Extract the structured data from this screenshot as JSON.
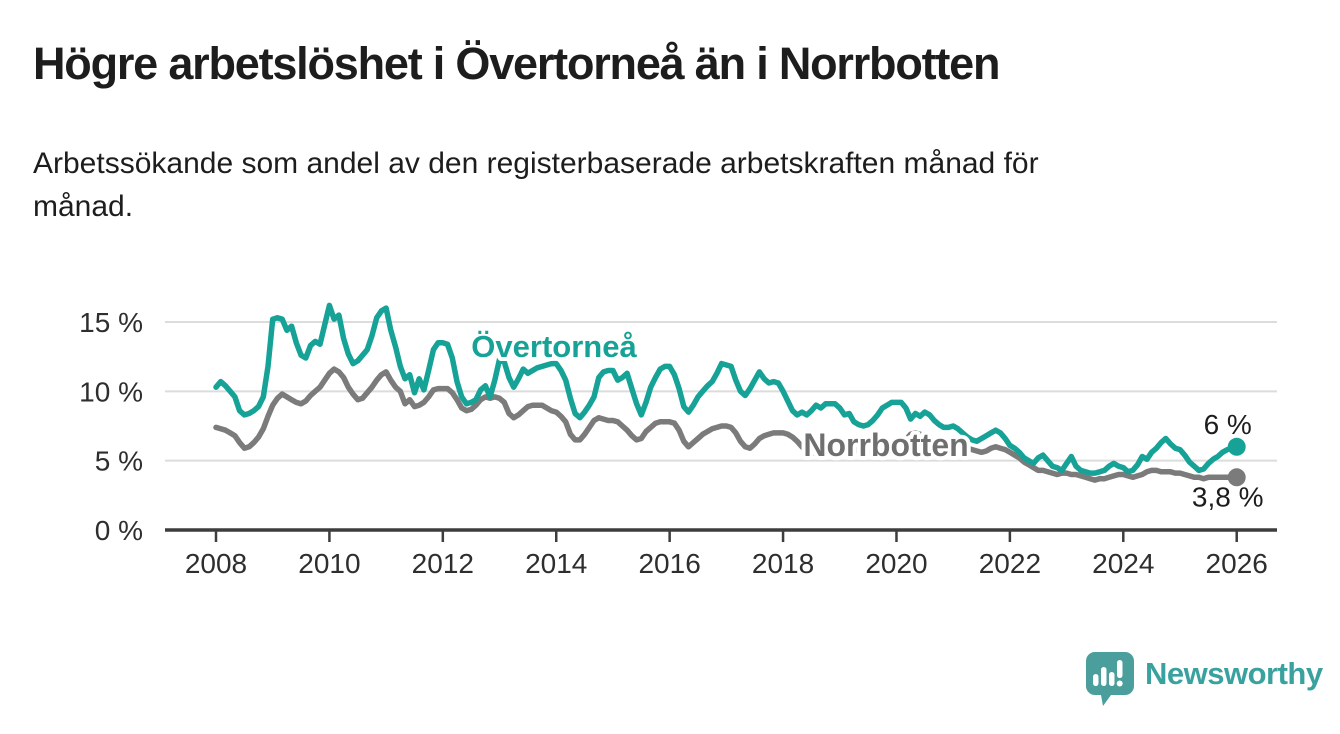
{
  "header": {
    "title": "Högre arbetslöshet i Övertorneå än i Norrbotten",
    "subtitle_line1": "Arbetssökande som andel av den registerbaserade arbetskraften månad för",
    "subtitle_line2": "månad."
  },
  "footer": {
    "brand": "Newsworthy",
    "logo_icon": "bar-chart-speech-bubble-icon"
  },
  "colors": {
    "overtornea": "#16a296",
    "norrbotten_line": "#7b7b7b",
    "norrbotten_label": "#6f6f6f",
    "grid": "#dcdcdc",
    "axis": "#3d3d3d",
    "text_dark": "#1d1d1d",
    "logo_teal": "#4a9e9b",
    "brand_text": "#3aa29e"
  },
  "chart_data": {
    "type": "line",
    "title": "Högre arbetslöshet i Övertorneå än i Norrbotten",
    "subtitle": "Arbetssökande som andel av den registerbaserade arbetskraften månad för månad.",
    "x_unit": "month",
    "x_start": "2008-01",
    "x_end": "2026-01",
    "x_tick_labels": [
      "2008",
      "2010",
      "2012",
      "2014",
      "2016",
      "2018",
      "2020",
      "2022",
      "2024",
      "2026"
    ],
    "y_ticks": [
      {
        "value": 0,
        "label": "0 %"
      },
      {
        "value": 5,
        "label": "5 %"
      },
      {
        "value": 10,
        "label": "10 %"
      },
      {
        "value": 15,
        "label": "15 %"
      }
    ],
    "ylim": [
      0,
      17
    ],
    "grid": "horizontal",
    "legend_position": "inline-labels",
    "series": [
      {
        "name": "Norrbotten",
        "color": "#7b7b7b",
        "end_label": "3,8 %",
        "end_value": 3.8,
        "values": [
          7.4,
          7.3,
          7.2,
          7.0,
          6.8,
          6.3,
          5.9,
          6.0,
          6.3,
          6.7,
          7.3,
          8.2,
          9.0,
          9.5,
          9.8,
          9.6,
          9.4,
          9.2,
          9.1,
          9.3,
          9.7,
          10.0,
          10.3,
          10.8,
          11.3,
          11.6,
          11.4,
          11.0,
          10.3,
          9.8,
          9.4,
          9.5,
          9.9,
          10.3,
          10.8,
          11.2,
          11.4,
          10.8,
          10.3,
          10.0,
          9.1,
          9.4,
          8.9,
          9.0,
          9.2,
          9.6,
          10.1,
          10.2,
          10.2,
          10.2,
          9.9,
          9.4,
          8.8,
          8.6,
          8.7,
          9.0,
          9.4,
          9.6,
          9.5,
          9.6,
          9.5,
          9.2,
          8.4,
          8.1,
          8.3,
          8.6,
          8.9,
          9.0,
          9.0,
          9.0,
          8.8,
          8.6,
          8.5,
          8.2,
          7.8,
          6.9,
          6.5,
          6.5,
          6.9,
          7.4,
          7.9,
          8.1,
          8.0,
          7.9,
          7.9,
          7.8,
          7.5,
          7.2,
          6.8,
          6.5,
          6.6,
          7.1,
          7.4,
          7.7,
          7.8,
          7.8,
          7.8,
          7.7,
          7.2,
          6.4,
          6.0,
          6.3,
          6.6,
          6.9,
          7.1,
          7.3,
          7.4,
          7.5,
          7.5,
          7.4,
          7.0,
          6.4,
          6.0,
          5.9,
          6.2,
          6.6,
          6.8,
          6.9,
          7.0,
          7.0,
          7.0,
          6.9,
          6.7,
          6.4,
          6.0,
          5.7,
          5.5,
          5.6,
          5.8,
          6.0,
          6.2,
          6.3,
          6.4,
          6.3,
          6.1,
          5.9,
          5.7,
          5.5,
          5.5,
          5.6,
          5.8,
          6.0,
          6.1,
          6.2,
          6.3,
          6.3,
          6.5,
          6.9,
          7.0,
          6.9,
          6.8,
          6.6,
          6.4,
          6.2,
          6.1,
          6.2,
          6.3,
          6.2,
          6.0,
          5.9,
          5.8,
          5.7,
          5.6,
          5.7,
          5.9,
          6.0,
          5.9,
          5.8,
          5.6,
          5.4,
          5.2,
          4.9,
          4.7,
          4.5,
          4.3,
          4.3,
          4.2,
          4.1,
          4.0,
          4.1,
          4.1,
          4.0,
          4.0,
          3.9,
          3.8,
          3.7,
          3.6,
          3.7,
          3.7,
          3.8,
          3.9,
          4.0,
          4.0,
          3.9,
          3.8,
          3.9,
          4.0,
          4.2,
          4.3,
          4.3,
          4.2,
          4.2,
          4.2,
          4.1,
          4.1,
          4.0,
          3.9,
          3.8,
          3.8,
          3.7,
          3.8,
          3.8,
          3.8,
          3.8,
          3.8,
          3.8,
          3.8
        ]
      },
      {
        "name": "Övertorneå",
        "color": "#16a296",
        "end_label": "6 %",
        "end_value": 6.0,
        "values": [
          10.3,
          10.7,
          10.4,
          10.0,
          9.6,
          8.6,
          8.3,
          8.4,
          8.6,
          8.9,
          9.6,
          11.8,
          15.2,
          15.3,
          15.2,
          14.4,
          14.7,
          13.5,
          12.6,
          12.4,
          13.3,
          13.6,
          13.4,
          14.8,
          16.2,
          15.2,
          15.5,
          13.8,
          12.7,
          12.0,
          12.2,
          12.6,
          13.0,
          14.0,
          15.3,
          15.8,
          16.0,
          14.4,
          13.2,
          11.8,
          10.9,
          11.2,
          9.9,
          10.9,
          10.1,
          11.5,
          13.0,
          13.5,
          13.5,
          13.4,
          12.4,
          10.7,
          9.6,
          9.1,
          9.2,
          9.4,
          10.1,
          10.4,
          9.6,
          10.8,
          12.3,
          12.1,
          11.0,
          10.3,
          10.9,
          11.6,
          11.3,
          11.5,
          11.7,
          11.8,
          11.9,
          12.0,
          12.0,
          11.5,
          10.8,
          9.5,
          8.4,
          8.1,
          8.5,
          9.0,
          9.6,
          11.0,
          11.4,
          11.5,
          11.5,
          10.8,
          11.0,
          11.3,
          10.2,
          9.1,
          8.3,
          9.2,
          10.3,
          11.0,
          11.6,
          11.8,
          11.8,
          11.2,
          10.2,
          8.9,
          8.5,
          9.0,
          9.6,
          10.0,
          10.4,
          10.7,
          11.3,
          12.0,
          11.9,
          11.8,
          10.8,
          10.0,
          9.7,
          10.2,
          10.8,
          11.4,
          10.9,
          10.6,
          10.7,
          10.6,
          10.0,
          9.3,
          8.6,
          8.3,
          8.5,
          8.3,
          8.6,
          9.0,
          8.8,
          9.1,
          9.1,
          9.1,
          8.8,
          8.3,
          8.4,
          7.8,
          7.6,
          7.5,
          7.6,
          7.9,
          8.3,
          8.8,
          9.0,
          9.2,
          9.2,
          9.2,
          8.8,
          8.0,
          8.4,
          8.2,
          8.5,
          8.3,
          7.9,
          7.6,
          7.4,
          7.4,
          7.5,
          7.3,
          7.0,
          6.7,
          6.5,
          6.4,
          6.6,
          6.8,
          7.0,
          7.2,
          7.0,
          6.6,
          6.1,
          5.9,
          5.6,
          5.2,
          5.0,
          4.8,
          5.2,
          5.4,
          5.0,
          4.6,
          4.5,
          4.3,
          4.8,
          5.3,
          4.6,
          4.3,
          4.2,
          4.1,
          4.1,
          4.2,
          4.3,
          4.6,
          4.8,
          4.6,
          4.5,
          4.2,
          4.3,
          4.7,
          5.3,
          5.1,
          5.6,
          5.9,
          6.3,
          6.6,
          6.2,
          5.9,
          5.8,
          5.4,
          4.9,
          4.6,
          4.3,
          4.4,
          4.8,
          5.1,
          5.3,
          5.6,
          5.8,
          5.9,
          6.0
        ]
      }
    ]
  }
}
